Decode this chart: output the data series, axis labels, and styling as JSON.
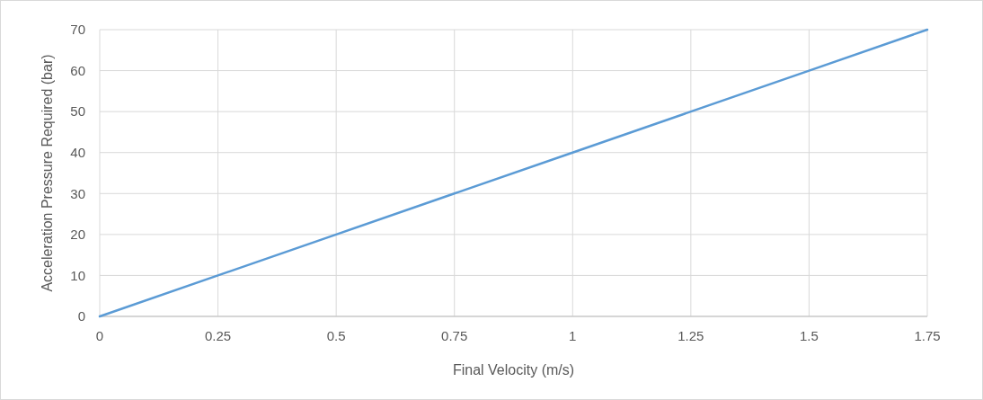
{
  "chart_data": {
    "type": "line",
    "xlabel": "Final Velocity (m/s)",
    "ylabel": "Acceleration Pressure Required (bar)",
    "x": [
      0,
      0.25,
      0.5,
      0.75,
      1,
      1.25,
      1.5,
      1.75
    ],
    "series": [
      {
        "color": "#5b9bd5",
        "values": [
          0,
          10,
          20,
          30,
          40,
          50,
          60,
          70
        ]
      }
    ],
    "xlim": [
      0,
      1.75
    ],
    "xticks": [
      0,
      0.25,
      0.5,
      0.75,
      1,
      1.25,
      1.5,
      1.75
    ],
    "ylim": [
      0,
      70
    ],
    "yticks": [
      0,
      10,
      20,
      30,
      40,
      50,
      60,
      70
    ],
    "grid": true,
    "marker": "none",
    "line_style": "solid"
  }
}
